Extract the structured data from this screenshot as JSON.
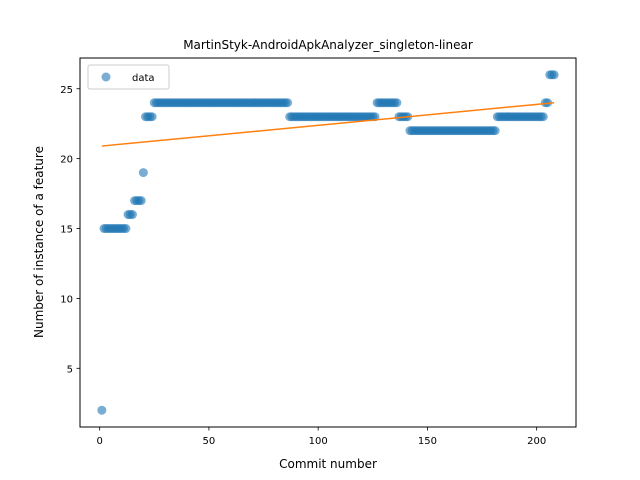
{
  "chart_data": {
    "type": "scatter",
    "title": "MartinStyk-AndroidApkAnalyzer_singleton-linear",
    "xlabel": "Commit number",
    "ylabel": "Number of instance of a feature",
    "xlim": [
      -9,
      218
    ],
    "ylim": [
      0.8,
      27.2
    ],
    "xticks": [
      0,
      50,
      100,
      150,
      200
    ],
    "yticks": [
      5,
      10,
      15,
      20,
      25
    ],
    "legend": {
      "position": "top-left",
      "entries": [
        "data"
      ]
    },
    "colors": {
      "data": "#1f77b4",
      "fit": "#ff7f0e"
    },
    "series": [
      {
        "name": "data",
        "kind": "scatter",
        "points": [
          [
            1,
            2
          ],
          [
            2,
            15
          ],
          [
            3,
            15
          ],
          [
            4,
            15
          ],
          [
            5,
            15
          ],
          [
            6,
            15
          ],
          [
            7,
            15
          ],
          [
            8,
            15
          ],
          [
            9,
            15
          ],
          [
            10,
            15
          ],
          [
            11,
            15
          ],
          [
            12,
            15
          ],
          [
            13,
            16
          ],
          [
            14,
            16
          ],
          [
            15,
            16
          ],
          [
            16,
            17
          ],
          [
            17,
            17
          ],
          [
            18,
            17
          ],
          [
            19,
            17
          ],
          [
            20,
            19
          ],
          [
            21,
            23
          ],
          [
            22,
            23
          ],
          [
            23,
            23
          ],
          [
            24,
            23
          ],
          [
            25,
            24
          ],
          [
            26,
            24
          ],
          [
            27,
            24
          ],
          [
            28,
            24
          ],
          [
            29,
            24
          ],
          [
            30,
            24
          ],
          [
            31,
            24
          ],
          [
            32,
            24
          ],
          [
            33,
            24
          ],
          [
            34,
            24
          ],
          [
            35,
            24
          ],
          [
            36,
            24
          ],
          [
            37,
            24
          ],
          [
            38,
            24
          ],
          [
            39,
            24
          ],
          [
            40,
            24
          ],
          [
            41,
            24
          ],
          [
            42,
            24
          ],
          [
            43,
            24
          ],
          [
            44,
            24
          ],
          [
            45,
            24
          ],
          [
            46,
            24
          ],
          [
            47,
            24
          ],
          [
            48,
            24
          ],
          [
            49,
            24
          ],
          [
            50,
            24
          ],
          [
            51,
            24
          ],
          [
            52,
            24
          ],
          [
            53,
            24
          ],
          [
            54,
            24
          ],
          [
            55,
            24
          ],
          [
            56,
            24
          ],
          [
            57,
            24
          ],
          [
            58,
            24
          ],
          [
            59,
            24
          ],
          [
            60,
            24
          ],
          [
            61,
            24
          ],
          [
            62,
            24
          ],
          [
            63,
            24
          ],
          [
            64,
            24
          ],
          [
            65,
            24
          ],
          [
            66,
            24
          ],
          [
            67,
            24
          ],
          [
            68,
            24
          ],
          [
            69,
            24
          ],
          [
            70,
            24
          ],
          [
            71,
            24
          ],
          [
            72,
            24
          ],
          [
            73,
            24
          ],
          [
            74,
            24
          ],
          [
            75,
            24
          ],
          [
            76,
            24
          ],
          [
            77,
            24
          ],
          [
            78,
            24
          ],
          [
            79,
            24
          ],
          [
            80,
            24
          ],
          [
            81,
            24
          ],
          [
            82,
            24
          ],
          [
            83,
            24
          ],
          [
            84,
            24
          ],
          [
            85,
            24
          ],
          [
            86,
            24
          ],
          [
            87,
            23
          ],
          [
            88,
            23
          ],
          [
            89,
            23
          ],
          [
            90,
            23
          ],
          [
            91,
            23
          ],
          [
            92,
            23
          ],
          [
            93,
            23
          ],
          [
            94,
            23
          ],
          [
            95,
            23
          ],
          [
            96,
            23
          ],
          [
            97,
            23
          ],
          [
            98,
            23
          ],
          [
            99,
            23
          ],
          [
            100,
            23
          ],
          [
            101,
            23
          ],
          [
            102,
            23
          ],
          [
            103,
            23
          ],
          [
            104,
            23
          ],
          [
            105,
            23
          ],
          [
            106,
            23
          ],
          [
            107,
            23
          ],
          [
            108,
            23
          ],
          [
            109,
            23
          ],
          [
            110,
            23
          ],
          [
            111,
            23
          ],
          [
            112,
            23
          ],
          [
            113,
            23
          ],
          [
            114,
            23
          ],
          [
            115,
            23
          ],
          [
            116,
            23
          ],
          [
            117,
            23
          ],
          [
            118,
            23
          ],
          [
            119,
            23
          ],
          [
            120,
            23
          ],
          [
            121,
            23
          ],
          [
            122,
            23
          ],
          [
            123,
            23
          ],
          [
            124,
            23
          ],
          [
            125,
            23
          ],
          [
            126,
            23
          ],
          [
            127,
            24
          ],
          [
            128,
            24
          ],
          [
            129,
            24
          ],
          [
            130,
            24
          ],
          [
            131,
            24
          ],
          [
            132,
            24
          ],
          [
            133,
            24
          ],
          [
            134,
            24
          ],
          [
            135,
            24
          ],
          [
            136,
            24
          ],
          [
            137,
            23
          ],
          [
            138,
            23
          ],
          [
            139,
            23
          ],
          [
            140,
            23
          ],
          [
            141,
            23
          ],
          [
            142,
            22
          ],
          [
            143,
            22
          ],
          [
            144,
            22
          ],
          [
            145,
            22
          ],
          [
            146,
            22
          ],
          [
            147,
            22
          ],
          [
            148,
            22
          ],
          [
            149,
            22
          ],
          [
            150,
            22
          ],
          [
            151,
            22
          ],
          [
            152,
            22
          ],
          [
            153,
            22
          ],
          [
            154,
            22
          ],
          [
            155,
            22
          ],
          [
            156,
            22
          ],
          [
            157,
            22
          ],
          [
            158,
            22
          ],
          [
            159,
            22
          ],
          [
            160,
            22
          ],
          [
            161,
            22
          ],
          [
            162,
            22
          ],
          [
            163,
            22
          ],
          [
            164,
            22
          ],
          [
            165,
            22
          ],
          [
            166,
            22
          ],
          [
            167,
            22
          ],
          [
            168,
            22
          ],
          [
            169,
            22
          ],
          [
            170,
            22
          ],
          [
            171,
            22
          ],
          [
            172,
            22
          ],
          [
            173,
            22
          ],
          [
            174,
            22
          ],
          [
            175,
            22
          ],
          [
            176,
            22
          ],
          [
            177,
            22
          ],
          [
            178,
            22
          ],
          [
            179,
            22
          ],
          [
            180,
            22
          ],
          [
            181,
            22
          ],
          [
            182,
            23
          ],
          [
            183,
            23
          ],
          [
            184,
            23
          ],
          [
            185,
            23
          ],
          [
            186,
            23
          ],
          [
            187,
            23
          ],
          [
            188,
            23
          ],
          [
            189,
            23
          ],
          [
            190,
            23
          ],
          [
            191,
            23
          ],
          [
            192,
            23
          ],
          [
            193,
            23
          ],
          [
            194,
            23
          ],
          [
            195,
            23
          ],
          [
            196,
            23
          ],
          [
            197,
            23
          ],
          [
            198,
            23
          ],
          [
            199,
            23
          ],
          [
            200,
            23
          ],
          [
            201,
            23
          ],
          [
            202,
            23
          ],
          [
            203,
            23
          ],
          [
            204,
            24
          ],
          [
            205,
            24
          ],
          [
            206,
            26
          ],
          [
            207,
            26
          ],
          [
            208,
            26
          ]
        ]
      },
      {
        "kind": "line",
        "points": [
          [
            1,
            20.9
          ],
          [
            208,
            24.0
          ]
        ]
      }
    ]
  }
}
